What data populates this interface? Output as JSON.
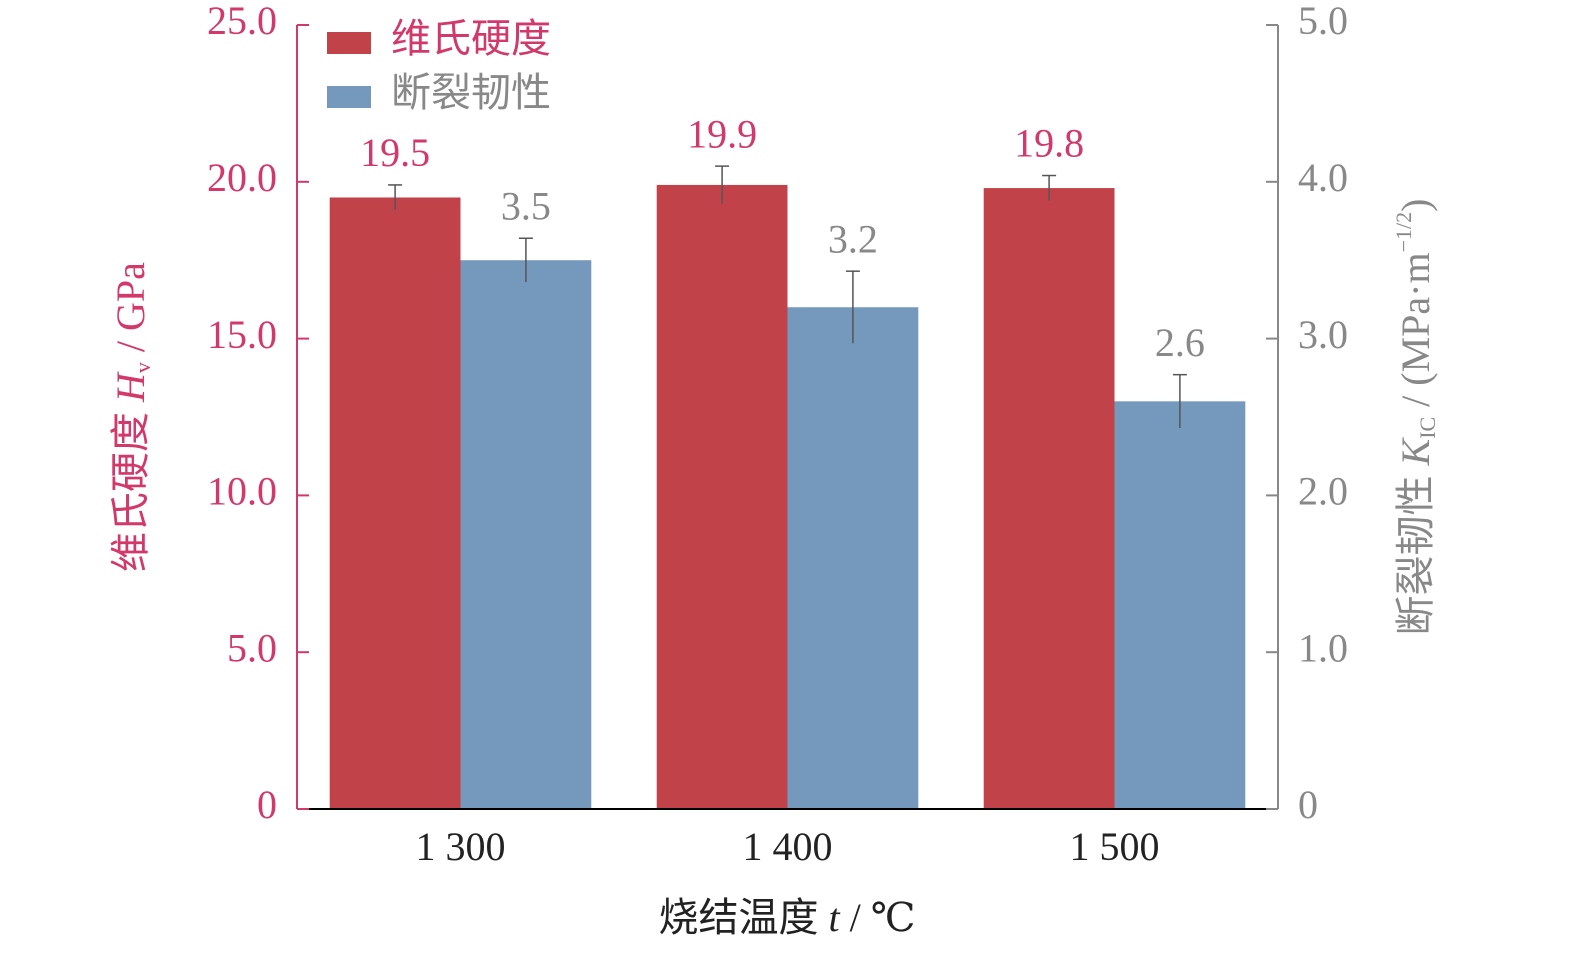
{
  "chart_data": {
    "type": "bar",
    "categories": [
      "1 300",
      "1 400",
      "1 500"
    ],
    "series": [
      {
        "name": "维氏硬度",
        "color": "#c2424a",
        "values": [
          19.5,
          19.9,
          19.8
        ],
        "errors": [
          0.4,
          0.6,
          0.4
        ]
      },
      {
        "name": "断裂韧性",
        "color": "#7499bc",
        "axis": "y2",
        "values": [
          3.5,
          3.2,
          2.6
        ],
        "errors": [
          0.14,
          0.23,
          0.17
        ]
      }
    ],
    "ylabel": [
      "维氏硬度 ",
      "H",
      "v",
      " / GPa"
    ],
    "y2label": [
      "断裂韧性 ",
      "K",
      "IC",
      " / (MPa·m",
      "−1/2",
      ")"
    ],
    "xlabel": [
      "烧结温度 ",
      "t",
      " / ℃"
    ],
    "ylim": [
      0,
      25
    ],
    "yticks": [
      0,
      {
        "value": 5,
        "label": "5.0"
      },
      {
        "value": 10,
        "label": "10.0"
      },
      {
        "value": 15,
        "label": "15.0"
      },
      {
        "value": 20,
        "label": "20.0"
      },
      {
        "value": 25,
        "label": "25.0"
      }
    ],
    "y2lim": [
      0,
      5
    ],
    "y2ticks": [
      0,
      {
        "value": 1,
        "label": "1.0"
      },
      {
        "value": 2,
        "label": "2.0"
      },
      {
        "value": 3,
        "label": "3.0"
      },
      {
        "value": 4,
        "label": "4.0"
      },
      {
        "value": 5,
        "label": "5.0"
      }
    ],
    "legend": "upper left"
  }
}
